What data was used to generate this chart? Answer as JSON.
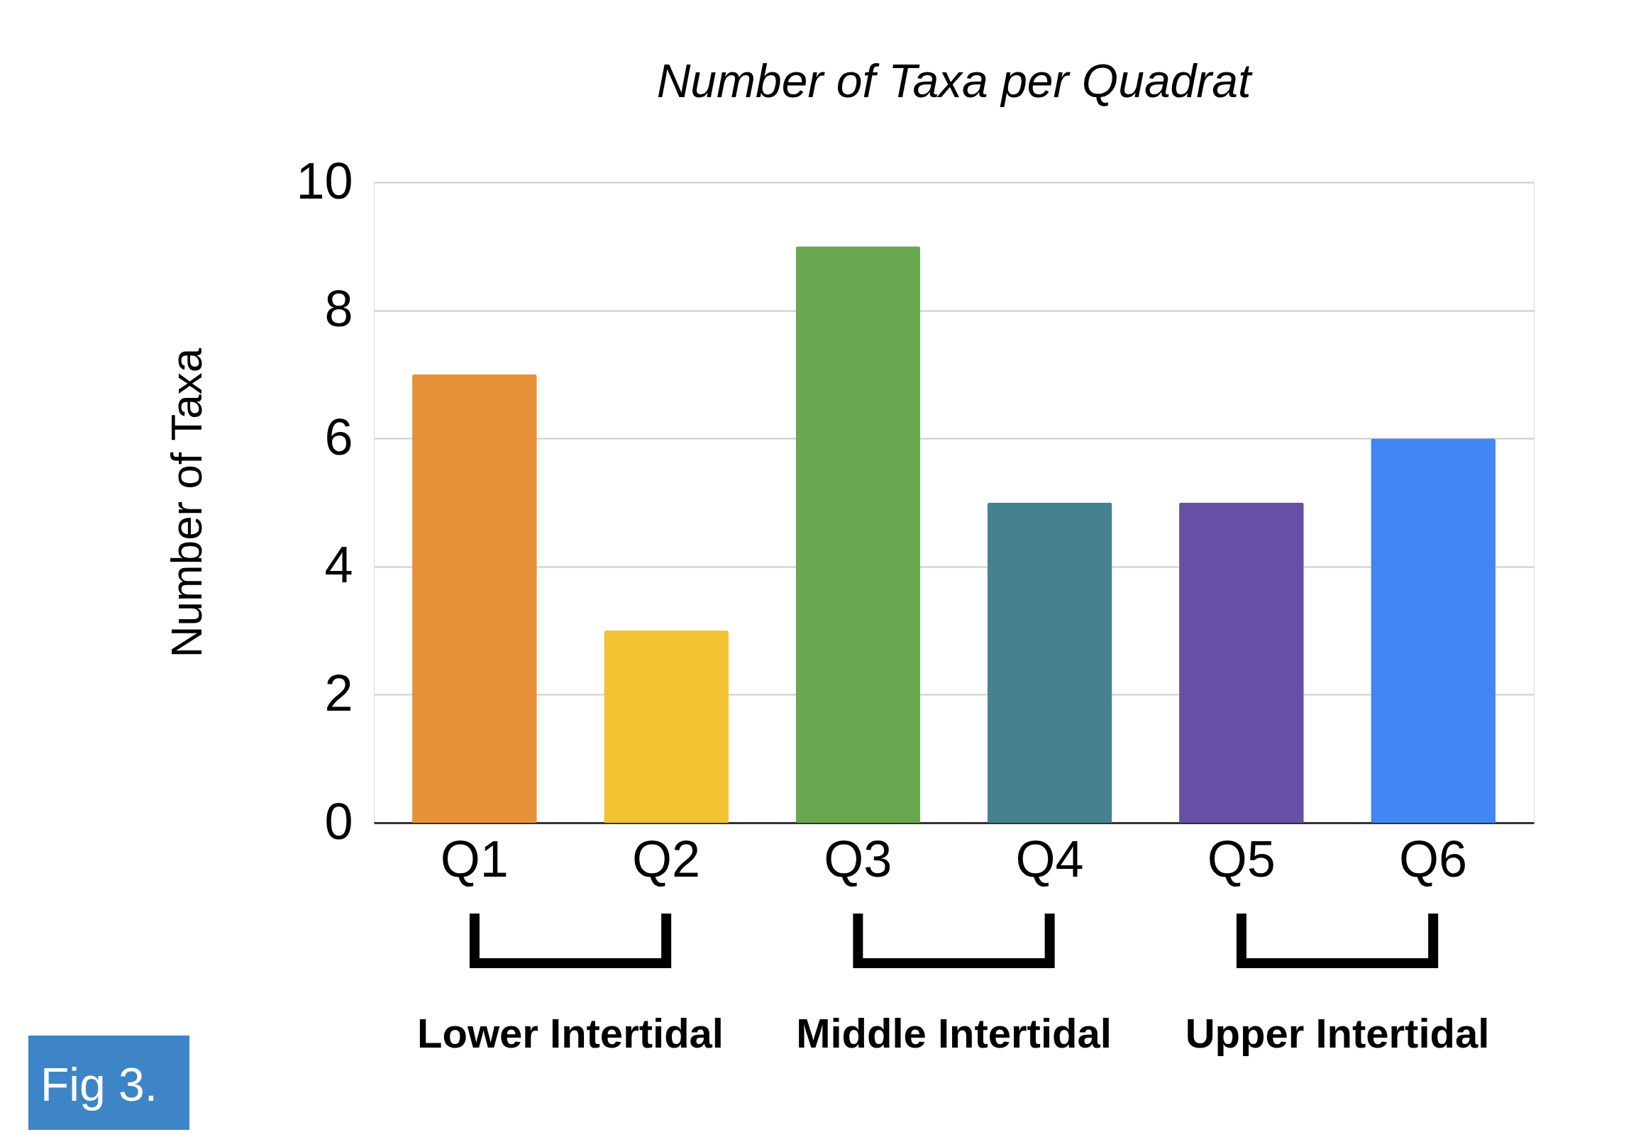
{
  "chart_data": {
    "type": "bar",
    "title": "Number of Taxa per Quadrat",
    "ylabel": "Number of Taxa",
    "categories": [
      "Q1",
      "Q2",
      "Q3",
      "Q4",
      "Q5",
      "Q6"
    ],
    "values": [
      7,
      3,
      9,
      5,
      5,
      6
    ],
    "colors": [
      "#e69138",
      "#f1c232",
      "#6aa84f",
      "#45818e",
      "#674ea7",
      "#4285f4"
    ],
    "ylim": [
      0,
      10
    ],
    "yticks": [
      0,
      2,
      4,
      6,
      8,
      10
    ],
    "grid": "y",
    "legend": false,
    "annotations": [
      "Lower Intertidal",
      "Middle Intertidal",
      "Upper Intertidal",
      "Fig 3."
    ]
  }
}
